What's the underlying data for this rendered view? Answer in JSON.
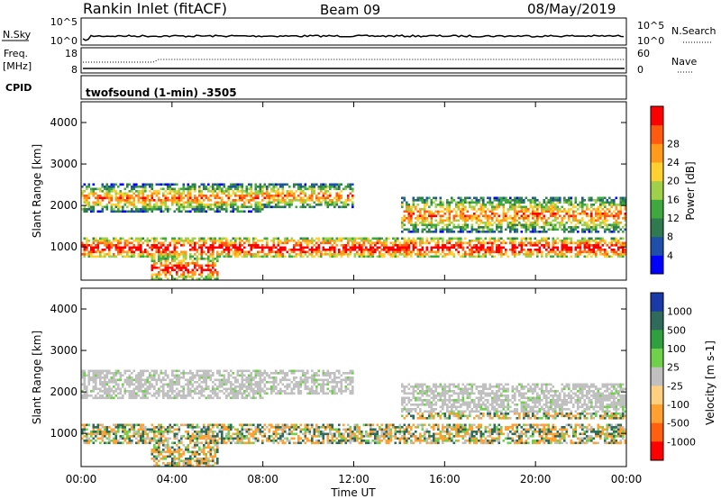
{
  "header": {
    "station": "Rankin Inlet (fitACF)",
    "beam": "Beam 09",
    "date": "08/May/2019"
  },
  "nsky_panel": {
    "left_label": "N.Sky",
    "left_top_tick": "10^5",
    "left_bottom_tick": "10^0",
    "right_top_tick": "10^5",
    "right_bottom_tick": "10^0",
    "right_label": "N.Search"
  },
  "freq_panel": {
    "left_label_1": "Freq.",
    "left_label_2": "[MHz]",
    "left_top_tick": "18",
    "left_bottom_tick": "8",
    "right_top_tick": "60",
    "right_bottom_tick": "0",
    "right_label": "Nave"
  },
  "cpid_panel": {
    "left_label": "CPID",
    "text": "twofsound (1-min) -3505"
  },
  "chart_data": [
    {
      "type": "heatmap",
      "quantity": "power",
      "ylabel": "Slant Range [km]",
      "ylim": [
        200,
        4500
      ],
      "yticks": [
        "1000",
        "2000",
        "3000",
        "4000"
      ],
      "colorbar_label": "Power [dB]",
      "colorbar_ticks": [
        "4",
        "8",
        "12",
        "16",
        "20",
        "24",
        "28"
      ],
      "colorbar_colors": [
        "#0000ff",
        "#1f4fa8",
        "#2f7a4f",
        "#3fa83f",
        "#9fd04a",
        "#ffd030",
        "#ff9a1a",
        "#ff5a10",
        "#ff0000"
      ],
      "echo_bands": [
        {
          "t_start": 0.0,
          "t_end": 8.0,
          "r_low": 1800,
          "r_high": 2500
        },
        {
          "t_start": 0.0,
          "t_end": 24.0,
          "r_low": 700,
          "r_high": 1200
        },
        {
          "t_start": 8.0,
          "t_end": 12.0,
          "r_low": 1900,
          "r_high": 2500
        },
        {
          "t_start": 14.0,
          "t_end": 24.0,
          "r_low": 1300,
          "r_high": 2200
        },
        {
          "t_start": 3.0,
          "t_end": 6.0,
          "r_low": 200,
          "r_high": 700
        }
      ]
    },
    {
      "type": "heatmap",
      "quantity": "velocity",
      "ylabel": "Slant Range [km]",
      "ylim": [
        200,
        4500
      ],
      "yticks": [
        "1000",
        "2000",
        "3000",
        "4000"
      ],
      "colorbar_label": "Velocity [m s-1]",
      "colorbar_ticks": [
        "1000",
        "500",
        "100",
        "25",
        "-25",
        "-100",
        "-500",
        "-1000"
      ],
      "colorbar_colors": [
        "#1a3aa8",
        "#2f6a5a",
        "#2f9f3f",
        "#6fd04a",
        "#c0c0c0",
        "#ffd080",
        "#ffa030",
        "#ff6010",
        "#ff0000"
      ],
      "xlabel": "Time UT",
      "xticks": [
        "00:00",
        "04:00",
        "08:00",
        "12:00",
        "16:00",
        "20:00",
        "00:00"
      ]
    }
  ]
}
